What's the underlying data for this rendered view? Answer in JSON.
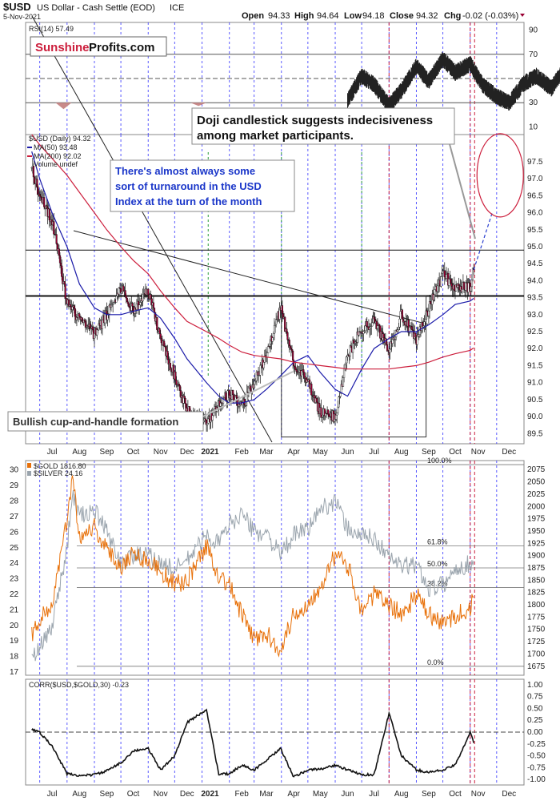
{
  "header": {
    "symbol": "$USD",
    "name": "US Dollar - Cash Settle (EOD)",
    "exchange": "ICE",
    "date": "5-Nov-2021",
    "open_label": "Open",
    "open": "94.33",
    "high_label": "High",
    "high": "94.64",
    "low_label": "Low",
    "low": "94.18",
    "close_label": "Close",
    "close": "94.32",
    "chg_label": "Chg",
    "chg": "-0.02 (-0.03%)"
  },
  "logo": {
    "part1": "Sunshine",
    "part2": "Profits.com"
  },
  "colors": {
    "usd": "#990033",
    "gold": "#e8710a",
    "silver": "#9aa4ad",
    "ma50": "#1a1aa8",
    "ma200": "#cc1e3c",
    "blue_text": "#1a36c9",
    "month_grid": "#3333ff",
    "ellipse": "#cc1e3c"
  },
  "annotations": {
    "doji": [
      "Doji candlestick suggests indecisiveness",
      "among market participants."
    ],
    "turnaround": [
      "There's almost always some",
      "sort of turnaround in the USD",
      "Index at the turn of the month"
    ],
    "cup": "Bullish cup-and-handle formation"
  },
  "chart_data": [
    {
      "type": "line",
      "panel": "rsi",
      "legend": "RSI(14) 57.49",
      "ylim": [
        5,
        95
      ],
      "yticks": [
        10,
        30,
        50,
        70,
        90
      ],
      "reference_levels": [
        30,
        50,
        70
      ],
      "x": [
        "2021-06-15",
        "2021-07-01",
        "2021-07-15",
        "2021-08-01",
        "2021-08-15",
        "2021-09-01",
        "2021-09-15",
        "2021-10-01",
        "2021-10-15",
        "2021-11-01",
        "2021-11-15",
        "2021-12-01",
        "2021-12-15",
        "2022-01-01",
        "2022-01-15",
        "2022-02-01",
        "2022-02-15",
        "2022-03-01",
        "2022-03-15",
        "2022-04-01",
        "2022-04-15",
        "2022-05-01",
        "2022-05-15",
        "2022-06-01",
        "2022-06-15",
        "2022-07-01",
        "2022-07-15",
        "2022-08-01",
        "2022-08-15",
        "2022-09-01",
        "2022-09-15",
        "2022-10-01",
        "2022-10-15",
        "2022-11-01",
        "2022-11-05"
      ],
      "values": [
        32,
        52,
        45,
        28,
        40,
        60,
        48,
        66,
        55,
        62,
        45,
        35,
        30,
        46,
        52,
        42,
        58,
        50,
        64,
        68,
        54,
        40,
        48,
        38,
        66,
        72,
        60,
        55,
        64,
        50,
        42,
        58,
        70,
        52,
        57.49
      ]
    },
    {
      "type": "candlestick",
      "panel": "usd",
      "legend": [
        "$USD (Daily) 94.32",
        "MA(50) 93.48",
        "MA(200) 92.02",
        "Volume undef"
      ],
      "ylim": [
        89.2,
        98.3
      ],
      "yticks": [
        89.5,
        90.0,
        90.5,
        91.0,
        91.5,
        92.0,
        92.5,
        93.0,
        93.5,
        94.0,
        94.5,
        95.0,
        95.5,
        96.0,
        96.5,
        97.0,
        97.5
      ],
      "xticks": [
        "Jul",
        "Aug",
        "Sep",
        "Oct",
        "Nov",
        "Dec",
        "2021",
        "Feb",
        "Mar",
        "Apr",
        "May",
        "Jun",
        "Jul",
        "Aug",
        "Sep",
        "Oct",
        "Nov",
        "Dec"
      ],
      "x": [
        "2020-06-22",
        "2020-07-01",
        "2020-07-15",
        "2020-08-01",
        "2020-08-15",
        "2020-09-01",
        "2020-09-15",
        "2020-10-01",
        "2020-10-15",
        "2020-11-01",
        "2020-11-15",
        "2020-12-01",
        "2020-12-15",
        "2021-01-06",
        "2021-01-20",
        "2021-02-01",
        "2021-02-15",
        "2021-03-01",
        "2021-03-15",
        "2021-03-31",
        "2021-04-15",
        "2021-05-01",
        "2021-05-15",
        "2021-06-01",
        "2021-06-15",
        "2021-07-01",
        "2021-07-15",
        "2021-08-01",
        "2021-08-15",
        "2021-09-01",
        "2021-09-15",
        "2021-10-01",
        "2021-10-15",
        "2021-11-01",
        "2021-11-05"
      ],
      "close": [
        97.3,
        96.5,
        95.8,
        93.3,
        92.9,
        92.4,
        93.0,
        93.8,
        93.1,
        93.7,
        92.3,
        91.2,
        90.2,
        89.8,
        90.4,
        90.7,
        90.3,
        91.0,
        91.8,
        93.2,
        91.6,
        91.0,
        90.1,
        90.0,
        91.8,
        92.6,
        92.8,
        92.0,
        93.0,
        92.2,
        93.2,
        94.2,
        93.8,
        93.8,
        94.32
      ],
      "ma50": [
        97.8,
        97.0,
        96.0,
        95.0,
        93.9,
        93.2,
        93.0,
        93.0,
        93.1,
        93.2,
        92.9,
        92.3,
        91.7,
        91.0,
        90.6,
        90.4,
        90.4,
        90.5,
        90.8,
        91.2,
        91.6,
        91.8,
        91.3,
        90.8,
        90.6,
        91.4,
        92.0,
        92.3,
        92.5,
        92.5,
        92.7,
        93.0,
        93.3,
        93.4,
        93.48
      ],
      "ma200": [
        98.3,
        98.0,
        97.6,
        97.1,
        96.6,
        96.0,
        95.5,
        95.0,
        94.6,
        94.2,
        93.7,
        93.2,
        92.8,
        92.5,
        92.3,
        92.1,
        91.9,
        91.8,
        91.75,
        91.7,
        91.6,
        91.55,
        91.5,
        91.45,
        91.4,
        91.4,
        91.4,
        91.4,
        91.45,
        91.5,
        91.6,
        91.75,
        91.85,
        91.95,
        92.02
      ],
      "horizontal_levels": [
        94.9,
        93.55
      ],
      "projection": [
        [
          "2021-11-05",
          94.32
        ],
        [
          "2021-11-26",
          96.0
        ]
      ]
    },
    {
      "type": "line",
      "panel": "gold-silver",
      "legend": [
        "$GOLD 1816.80",
        "$SILVER 24.16"
      ],
      "ylim_left": [
        16.9,
        30.5
      ],
      "yticks_left": [
        17,
        18,
        19,
        20,
        21,
        22,
        23,
        24,
        25,
        26,
        27,
        28,
        29,
        30
      ],
      "ylim_right": [
        1660,
        2090
      ],
      "yticks_right": [
        1675,
        1700,
        1725,
        1750,
        1775,
        1800,
        1825,
        1850,
        1875,
        1900,
        1925,
        1950,
        1975,
        2000,
        2025,
        2050,
        2075
      ],
      "fib_levels": [
        {
          "label": "100.0%",
          "value": 2085
        },
        {
          "label": "61.8%",
          "value": 1920
        },
        {
          "label": "50.0%",
          "value": 1875
        },
        {
          "label": "38.2%",
          "value": 1835
        },
        {
          "label": "0.0%",
          "value": 1675
        }
      ],
      "x": [
        "2020-06-22",
        "2020-07-01",
        "2020-07-15",
        "2020-08-01",
        "2020-08-07",
        "2020-08-15",
        "2020-09-01",
        "2020-09-15",
        "2020-10-01",
        "2020-10-15",
        "2020-11-01",
        "2020-11-15",
        "2020-12-01",
        "2020-12-15",
        "2021-01-06",
        "2021-01-20",
        "2021-02-01",
        "2021-02-15",
        "2021-03-01",
        "2021-03-15",
        "2021-03-31",
        "2021-04-15",
        "2021-05-01",
        "2021-05-15",
        "2021-06-01",
        "2021-06-15",
        "2021-07-01",
        "2021-07-15",
        "2021-08-01",
        "2021-08-15",
        "2021-09-01",
        "2021-09-15",
        "2021-10-01",
        "2021-10-15",
        "2021-11-01",
        "2021-11-05"
      ],
      "series": [
        {
          "name": "$GOLD",
          "axis": "right",
          "values": [
            1740,
            1770,
            1800,
            1970,
            2065,
            1940,
            1960,
            1910,
            1880,
            1905,
            1890,
            1870,
            1840,
            1850,
            1920,
            1860,
            1840,
            1780,
            1730,
            1740,
            1710,
            1780,
            1800,
            1840,
            1900,
            1880,
            1790,
            1820,
            1800,
            1780,
            1820,
            1780,
            1760,
            1780,
            1790,
            1816.8
          ]
        },
        {
          "name": "$SILVER",
          "axis": "left",
          "values": [
            17.8,
            18.5,
            20.0,
            25.0,
            28.5,
            27.0,
            27.4,
            26.0,
            24.0,
            24.5,
            24.5,
            24.0,
            23.6,
            24.2,
            25.8,
            25.3,
            26.5,
            27.2,
            26.0,
            25.9,
            24.5,
            25.8,
            26.2,
            27.5,
            28.0,
            26.2,
            25.8,
            25.6,
            24.4,
            23.8,
            23.9,
            22.4,
            22.6,
            23.6,
            24.0,
            24.16
          ]
        }
      ]
    },
    {
      "type": "line",
      "panel": "corr",
      "legend": "CORR($USD,$GOLD,30) -0.23",
      "ylim": [
        -1.05,
        1.05
      ],
      "yticks": [
        -1.0,
        -0.75,
        -0.5,
        -0.25,
        0.0,
        0.25,
        0.5,
        0.75,
        1.0
      ],
      "x": [
        "2020-06-22",
        "2020-07-01",
        "2020-07-15",
        "2020-08-01",
        "2020-08-15",
        "2020-09-01",
        "2020-09-15",
        "2020-10-01",
        "2020-10-15",
        "2020-11-01",
        "2020-11-15",
        "2020-12-01",
        "2020-12-15",
        "2021-01-06",
        "2021-01-20",
        "2021-02-01",
        "2021-02-15",
        "2021-03-01",
        "2021-03-15",
        "2021-03-31",
        "2021-04-15",
        "2021-05-01",
        "2021-05-15",
        "2021-06-01",
        "2021-06-15",
        "2021-07-01",
        "2021-07-15",
        "2021-08-01",
        "2021-08-15",
        "2021-09-01",
        "2021-09-15",
        "2021-10-01",
        "2021-10-15",
        "2021-11-01",
        "2021-11-05"
      ],
      "values": [
        0.05,
        0.0,
        -0.3,
        -0.88,
        -0.92,
        -0.9,
        -0.82,
        -0.65,
        -0.4,
        -0.35,
        -0.8,
        -0.5,
        0.2,
        0.48,
        -0.9,
        -0.88,
        -0.7,
        -0.8,
        -0.6,
        -0.35,
        -0.95,
        -0.8,
        -0.78,
        -0.7,
        -0.8,
        -0.9,
        -0.9,
        0.4,
        -0.5,
        -0.8,
        -0.85,
        -0.8,
        -0.7,
        0.0,
        -0.23
      ]
    }
  ]
}
